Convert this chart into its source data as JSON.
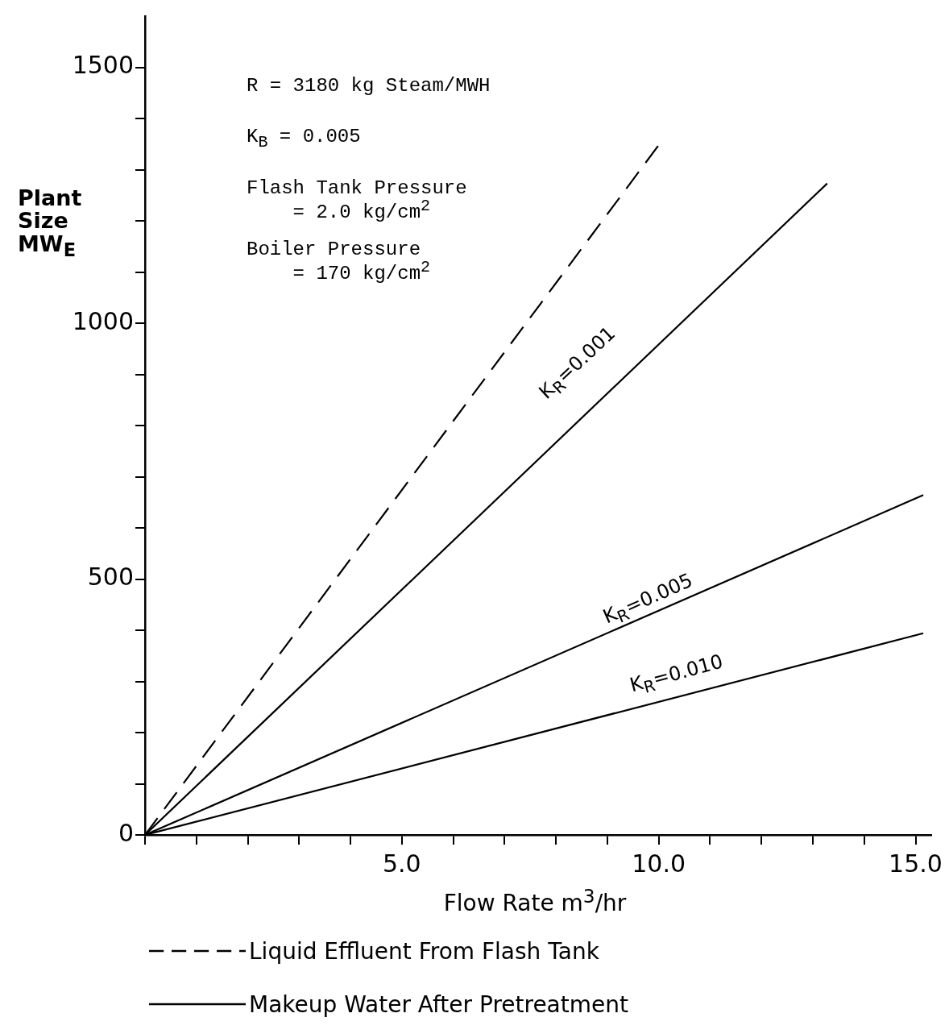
{
  "chart_data": {
    "type": "line",
    "xlabel": "Flow Rate m$^{3}$/hr",
    "ylabel": "Plant\nSize\nMW$_{E}$",
    "xlim": [
      0,
      15.3
    ],
    "ylim": [
      0,
      1600
    ],
    "xticks": [
      {
        "value": 0,
        "label": null
      },
      {
        "value": 1,
        "label": null
      },
      {
        "value": 2,
        "label": null
      },
      {
        "value": 3,
        "label": null
      },
      {
        "value": 4,
        "label": null
      },
      {
        "value": 5,
        "label": "5.0"
      },
      {
        "value": 6,
        "label": null
      },
      {
        "value": 7,
        "label": null
      },
      {
        "value": 8,
        "label": null
      },
      {
        "value": 9,
        "label": null
      },
      {
        "value": 10,
        "label": "10.0"
      },
      {
        "value": 11,
        "label": null
      },
      {
        "value": 12,
        "label": null
      },
      {
        "value": 13,
        "label": null
      },
      {
        "value": 14,
        "label": null
      },
      {
        "value": 15,
        "label": "15.0"
      }
    ],
    "yticks": [
      0,
      {
        "value": 100,
        "label": null
      },
      {
        "value": 200,
        "label": null
      },
      {
        "value": 300,
        "label": null
      },
      {
        "value": 400,
        "label": null
      },
      500,
      {
        "value": 600,
        "label": null
      },
      {
        "value": 700,
        "label": null
      },
      {
        "value": 800,
        "label": null
      },
      {
        "value": 900,
        "label": null
      },
      1000,
      {
        "value": 1100,
        "label": null
      },
      {
        "value": 1200,
        "label": null
      },
      {
        "value": 1300,
        "label": null
      },
      {
        "value": 1400,
        "label": null
      },
      1500
    ],
    "grid": false,
    "legend": "bottom",
    "marker": "none",
    "series": [
      {
        "name": "Liquid Effluent From Flash Tank",
        "color": "#000000",
        "line_style": "dashed",
        "x": [
          0,
          10.0
        ],
        "values": [
          0,
          1348
        ]
      },
      {
        "name": "Makeup Water After Pretreatment",
        "color": "#000000",
        "line_style": "solid",
        "x": [
          0,
          13.28
        ],
        "values": [
          0,
          1273
        ]
      },
      {
        "color": "#000000",
        "line_style": "solid",
        "x": [
          0,
          15.15
        ],
        "values": [
          0,
          664
        ]
      },
      {
        "color": "#000000",
        "line_style": "solid",
        "x": [
          0,
          15.15
        ],
        "values": [
          0,
          394
        ]
      }
    ],
    "annotations": [
      "R = 3180 kg Steam/MWH",
      "K$_{B}$ = 0.005",
      "Flash Tank Pressure\n    = 2.0 kg/cm$^{2}$",
      "Boiler Pressure\n    = 170 kg/cm$^{2}$",
      "K$_{R}$=0.001",
      "K$_{R}$=0.005",
      "K$_{R}$=0.010"
    ]
  }
}
